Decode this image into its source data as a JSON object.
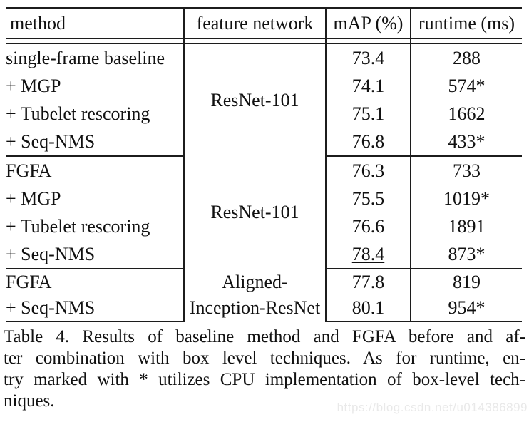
{
  "table": {
    "headers": {
      "method": "method",
      "feature_network": "feature network",
      "map": "mAP (%)",
      "runtime": "runtime (ms)"
    },
    "groups": [
      {
        "feature_network": "ResNet-101",
        "rows": [
          {
            "method": "single-frame baseline",
            "map": "73.4",
            "runtime": "288"
          },
          {
            "method": "+ MGP",
            "map": "74.1",
            "runtime": "574*"
          },
          {
            "method": "+ Tubelet rescoring",
            "map": "75.1",
            "runtime": "1662"
          },
          {
            "method": "+ Seq-NMS",
            "map": "76.8",
            "runtime": "433*"
          }
        ]
      },
      {
        "feature_network": "ResNet-101",
        "rows": [
          {
            "method": "FGFA",
            "map": "76.3",
            "runtime": "733"
          },
          {
            "method": "+ MGP",
            "map": "75.5",
            "runtime": "1019*"
          },
          {
            "method": "+ Tubelet rescoring",
            "map": "76.6",
            "runtime": "1891"
          },
          {
            "method": "+ Seq-NMS",
            "map": "78.4",
            "runtime": "873*"
          }
        ]
      },
      {
        "feature_network_line1": "Aligned-",
        "feature_network_line2": "Inception-ResNet",
        "rows": [
          {
            "method": "FGFA",
            "map": "77.8",
            "runtime": "819"
          },
          {
            "method": "+ Seq-NMS",
            "map": "80.1",
            "runtime": "954*"
          }
        ]
      }
    ]
  },
  "caption": {
    "lines": [
      "Table 4. Results of baseline method and FGFA before and af-",
      "ter combination with box level techniques.  As for runtime, en-",
      "try marked with * utilizes CPU implementation of box-level tech-",
      "niques."
    ]
  },
  "watermark": "https://blog.csdn.net/u014386899"
}
